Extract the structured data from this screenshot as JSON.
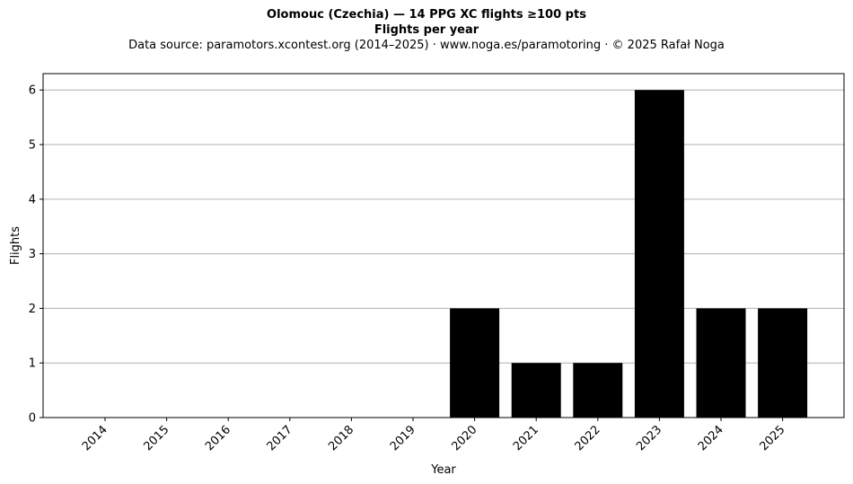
{
  "chart_data": {
    "type": "bar",
    "title": "Olomouc (Czechia)  —  14 PPG XC flights ≥100 pts",
    "subtitle": "Flights per year",
    "source_note": "Data source: paramotors.xcontest.org (2014–2025)  ·  www.noga.es/paramotoring  ·  © 2025 Rafał Noga",
    "xlabel": "Year",
    "ylabel": "Flights",
    "categories": [
      "2014",
      "2015",
      "2016",
      "2017",
      "2018",
      "2019",
      "2020",
      "2021",
      "2022",
      "2023",
      "2024",
      "2025"
    ],
    "values": [
      0,
      0,
      0,
      0,
      0,
      0,
      2,
      1,
      1,
      6,
      2,
      2
    ],
    "ylim": [
      0,
      6.3
    ],
    "yticks": [
      0,
      1,
      2,
      3,
      4,
      5,
      6
    ],
    "grid": "y",
    "bar_color": "#000000",
    "grid_color": "#b0b0b0"
  }
}
